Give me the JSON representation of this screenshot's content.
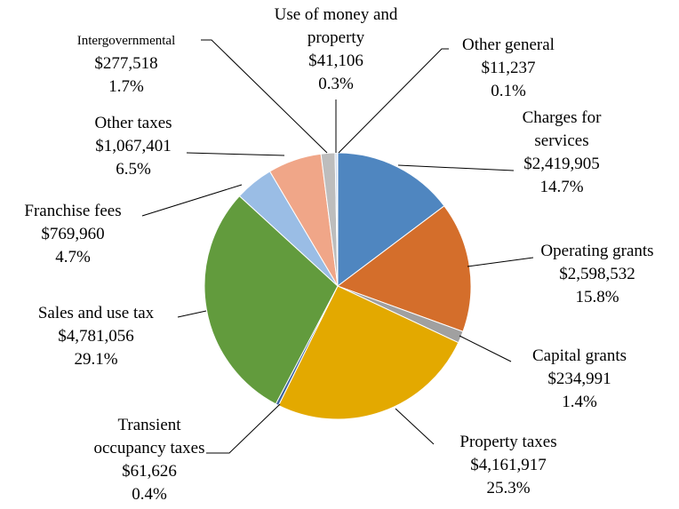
{
  "chart_data": {
    "type": "pie",
    "categories": [
      "Charges for services",
      "Operating grants",
      "Capital grants",
      "Property taxes",
      "Transient occupancy taxes",
      "Sales and use tax",
      "Franchise fees",
      "Other taxes",
      "Intergovernmental",
      "Use of money and property",
      "Other general"
    ],
    "values": [
      2419905,
      2598532,
      234991,
      4161917,
      61626,
      4781056,
      769960,
      1067401,
      277518,
      41106,
      11237
    ],
    "value_labels": [
      "$2,419,905",
      "$2,598,532",
      "$234,991",
      "$4,161,917",
      "$61,626",
      "$4,781,056",
      "$769,960",
      "$1,067,401",
      "$277,518",
      "$41,106",
      "$11,237"
    ],
    "percent_labels": [
      "14.7%",
      "15.8%",
      "1.4%",
      "25.3%",
      "0.4%",
      "29.1%",
      "4.7%",
      "6.5%",
      "1.7%",
      "0.3%",
      "0.1%"
    ],
    "colors": [
      "#4f86c0",
      "#d46e2b",
      "#a0a0a0",
      "#e3a900",
      "#3b63a0",
      "#629b3d",
      "#9abde5",
      "#f0a688",
      "#bdbdbd",
      "#c4d3ea",
      "#f5c28c"
    ]
  }
}
